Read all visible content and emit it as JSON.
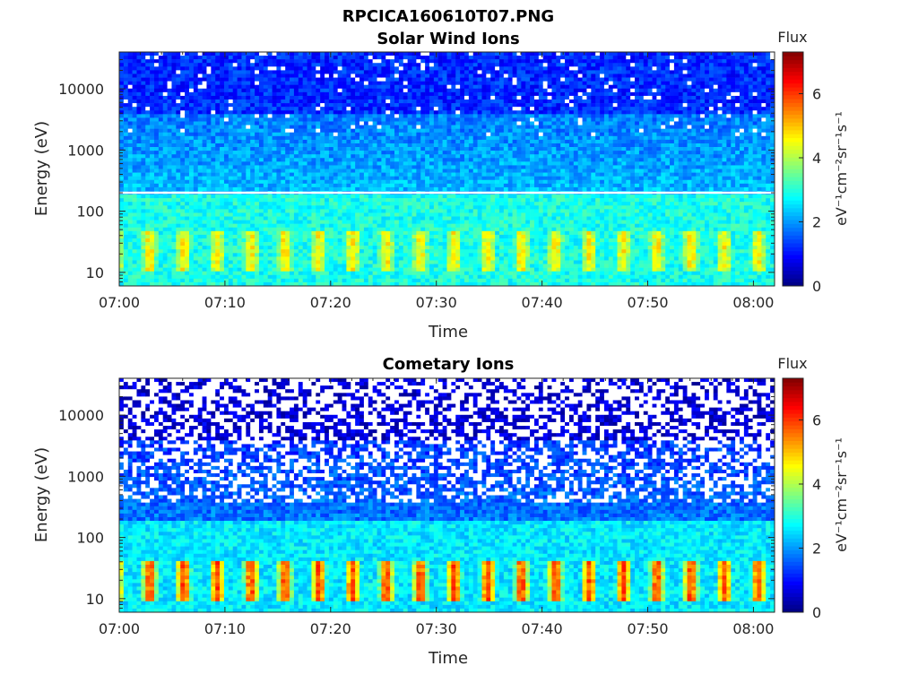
{
  "figure": {
    "title": "RPCICA160610T07.PNG"
  },
  "chart_data": [
    {
      "type": "heatmap",
      "title": "Solar Wind Ions",
      "xlabel": "Time",
      "ylabel": "Energy (eV)",
      "x_tick_labels": [
        "07:00",
        "07:10",
        "07:20",
        "07:30",
        "07:40",
        "07:50",
        "08:00"
      ],
      "x_range": [
        "07:00",
        "08:02"
      ],
      "y_scale": "log",
      "y_tick_labels": [
        "10",
        "100",
        "1000",
        "10000"
      ],
      "y_range": [
        6,
        40000
      ],
      "colorbar": {
        "title": "Flux",
        "label": "eV⁻¹cm⁻²sr⁻¹s⁻¹",
        "ticks": [
          "0",
          "2",
          "4",
          "6"
        ],
        "range": [
          0,
          7.3
        ],
        "colormap": "jet"
      },
      "features": {
        "background_level_high_energy": 1.2,
        "background_level_mid_energy": 1.8,
        "background_level_low_energy": 2.9,
        "white_line_energy_eV": 200,
        "periodic_peak_energy_eV": [
          15,
          35
        ],
        "peak_level": 4.8,
        "peak_period_minutes": 3.2
      }
    },
    {
      "type": "heatmap",
      "title": "Cometary Ions",
      "xlabel": "Time",
      "ylabel": "Energy (eV)",
      "x_tick_labels": [
        "07:00",
        "07:10",
        "07:20",
        "07:30",
        "07:40",
        "07:50",
        "08:00"
      ],
      "x_range": [
        "07:00",
        "08:02"
      ],
      "y_scale": "log",
      "y_tick_labels": [
        "10",
        "100",
        "1000",
        "10000"
      ],
      "y_range": [
        6,
        40000
      ],
      "colorbar": {
        "title": "Flux",
        "label": "eV⁻¹cm⁻²sr⁻¹s⁻¹",
        "ticks": [
          "0",
          "2",
          "4",
          "6"
        ],
        "range": [
          0,
          7.3
        ],
        "colormap": "jet"
      },
      "features": {
        "background_level_high_energy": 0.6,
        "background_level_mid_energy": 1.3,
        "background_level_low_energy": 2.6,
        "periodic_peak_energy_eV": [
          12,
          30
        ],
        "peak_level": 6.2,
        "peak_period_minutes": 3.2
      }
    }
  ]
}
